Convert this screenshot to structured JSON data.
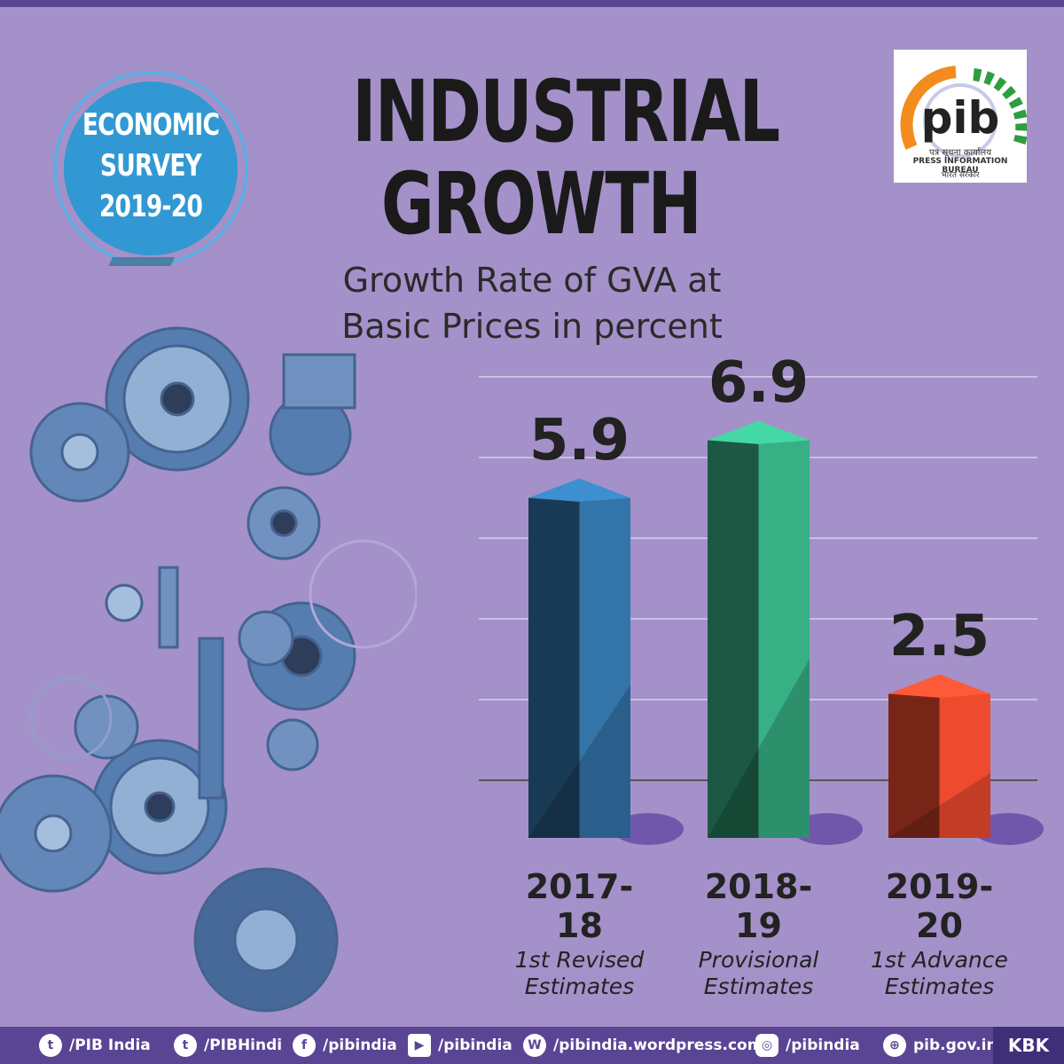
{
  "header": {
    "badge_lines": [
      "ECONOMIC",
      "SURVEY",
      "2019-20"
    ],
    "title_lines": [
      "INDUSTRIAL",
      "GROWTH"
    ],
    "subtitle_lines": [
      "Growth Rate of GVA at",
      "Basic Prices in percent"
    ]
  },
  "logo": {
    "text": "pib",
    "hindi_line": "पत्र सूचना कार्यालय",
    "english_line": "PRESS INFORMATION BUREAU",
    "hindi_line2": "भारत सरकार"
  },
  "chart_data": {
    "type": "bar",
    "title": "Growth Rate of GVA at Basic Prices in percent",
    "categories": [
      "2017-18",
      "2018-19",
      "2019-20"
    ],
    "category_lines": [
      [
        "2017-",
        "18"
      ],
      [
        "2018-",
        "19"
      ],
      [
        "2019-",
        "20"
      ]
    ],
    "estimate_types": [
      [
        "1st Revised",
        "Estimates"
      ],
      [
        "Provisional",
        "Estimates"
      ],
      [
        "1st Advance",
        "Estimates"
      ]
    ],
    "values": [
      5.9,
      6.9,
      2.5
    ],
    "value_labels": [
      "5.9",
      "6.9",
      "2.5"
    ],
    "ylim": [
      0,
      8
    ],
    "xlabel": "",
    "ylabel": "",
    "bar_colors": [
      "#2e6a9a",
      "#33a07a",
      "#d8432a"
    ],
    "legend": "none"
  },
  "footer": {
    "items": [
      {
        "icon": "twitter-icon",
        "label": "/PIB  India"
      },
      {
        "icon": "twitter-icon",
        "label": "/PIBHindi"
      },
      {
        "icon": "facebook-icon",
        "label": "/pibindia"
      },
      {
        "icon": "youtube-icon",
        "label": "/pibindia"
      },
      {
        "icon": "wordpress-icon",
        "label": "/pibindia.wordpress.com"
      },
      {
        "icon": "instagram-icon",
        "label": "/pibindia"
      },
      {
        "icon": "globe-icon",
        "label": "pib.gov.in"
      }
    ],
    "credit": "KBK"
  }
}
